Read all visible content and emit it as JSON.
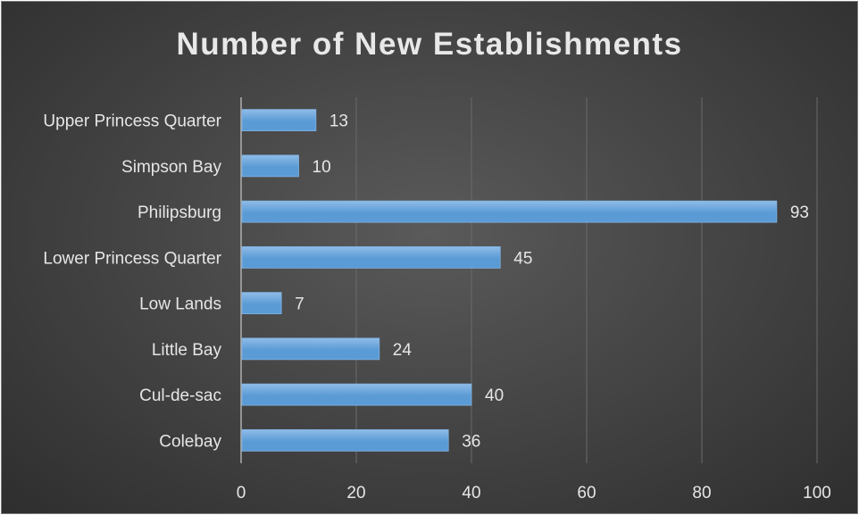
{
  "chart_data": {
    "type": "bar",
    "orientation": "horizontal",
    "title": "Number of New Establishments",
    "categories": [
      "Upper Princess Quarter",
      "Simpson Bay",
      "Philipsburg",
      "Lower Princess Quarter",
      "Low Lands",
      "Little Bay",
      "Cul-de-sac",
      "Colebay"
    ],
    "values": [
      13,
      10,
      93,
      45,
      7,
      24,
      40,
      36
    ],
    "xlim": [
      0,
      100
    ],
    "xticks": [
      0,
      20,
      40,
      60,
      80,
      100
    ],
    "grid": true,
    "data_labels": true,
    "colors": {
      "bar": "#5b9bd5",
      "bar_highlight": "#8fbce8",
      "text": "#e6e6e6",
      "grid": "#6a6a6a",
      "axis": "#b0b0b0"
    }
  }
}
